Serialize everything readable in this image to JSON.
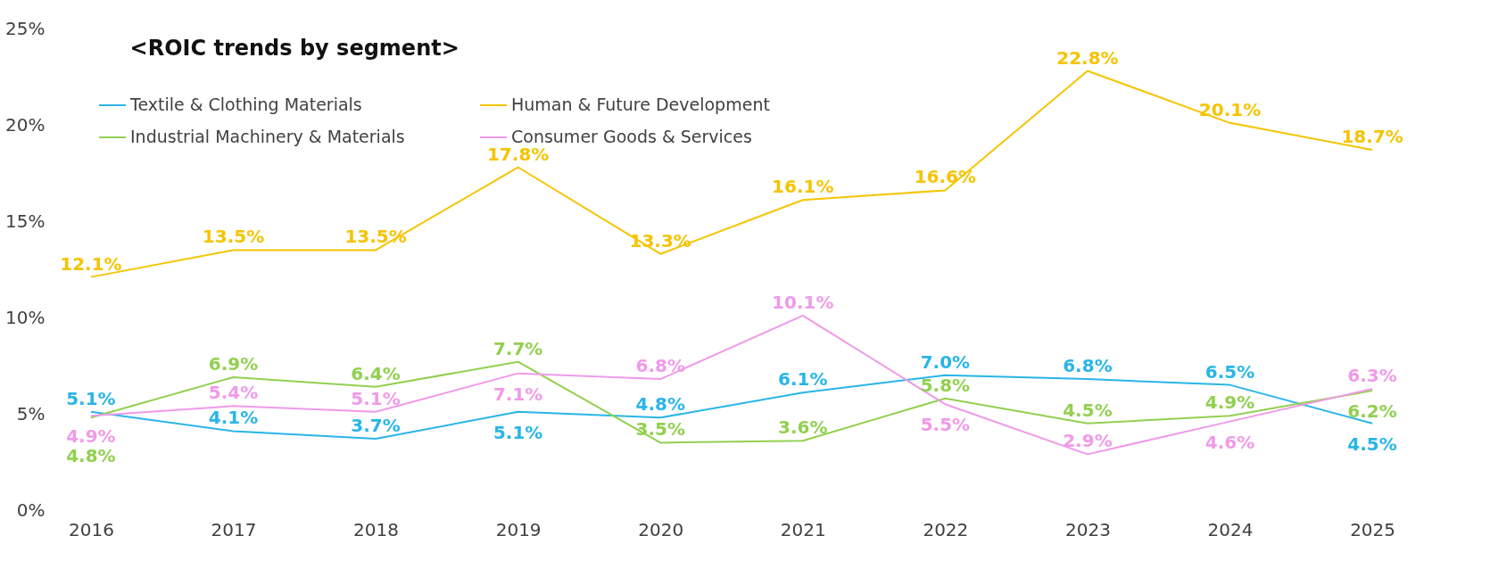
{
  "chart_data": {
    "type": "line",
    "title": "<ROIC trends by segment>",
    "categories": [
      "2016",
      "2017",
      "2018",
      "2019",
      "2020",
      "2021",
      "2022",
      "2023",
      "2024",
      "2025"
    ],
    "series": [
      {
        "name": "Textile & Clothing Materials",
        "color": "#29b5e8",
        "values": [
          5.1,
          4.1,
          3.7,
          5.1,
          4.8,
          6.1,
          7.0,
          6.8,
          6.5,
          4.5
        ],
        "value_labels": [
          "5.1%",
          "4.1%",
          "3.7%",
          "5.1%",
          "4.8%",
          "6.1%",
          "7.0%",
          "6.8%",
          "6.5%",
          "4.5%"
        ]
      },
      {
        "name": "Industrial Machinery & Materials",
        "color": "#92d050",
        "values": [
          4.8,
          6.9,
          6.4,
          7.7,
          3.5,
          3.6,
          5.8,
          4.5,
          4.9,
          6.2
        ],
        "value_labels": [
          "4.8%",
          "6.9%",
          "6.4%",
          "7.7%",
          "3.5%",
          "3.6%",
          "5.8%",
          "4.5%",
          "4.9%",
          "6.2%"
        ]
      },
      {
        "name": "Human & Future Development",
        "color": "#f5c400",
        "values": [
          12.1,
          13.5,
          13.5,
          17.8,
          13.3,
          16.1,
          16.6,
          22.8,
          20.1,
          18.7
        ],
        "value_labels": [
          "12.1%",
          "13.5%",
          "13.5%",
          "17.8%",
          "13.3%",
          "16.1%",
          "16.6%",
          "22.8%",
          "20.1%",
          "18.7%"
        ]
      },
      {
        "name": "Consumer Goods & Services",
        "color": "#f09ae8",
        "values": [
          4.9,
          5.4,
          5.1,
          7.1,
          6.8,
          10.1,
          5.5,
          2.9,
          4.6,
          6.3
        ],
        "value_labels": [
          "4.9%",
          "5.4%",
          "5.1%",
          "7.1%",
          "6.8%",
          "10.1%",
          "5.5%",
          "2.9%",
          "4.6%",
          "6.3%"
        ]
      }
    ],
    "ylim": [
      0,
      25
    ],
    "yticks": [
      {
        "value": 0,
        "label": "0%"
      },
      {
        "value": 5,
        "label": "5%"
      },
      {
        "value": 10,
        "label": "10%"
      },
      {
        "value": 15,
        "label": "15%"
      },
      {
        "value": 20,
        "label": "20%"
      },
      {
        "value": 25,
        "label": "25%"
      }
    ],
    "grid": false,
    "legend": "top left",
    "marker": "none",
    "line_style": "solid"
  }
}
